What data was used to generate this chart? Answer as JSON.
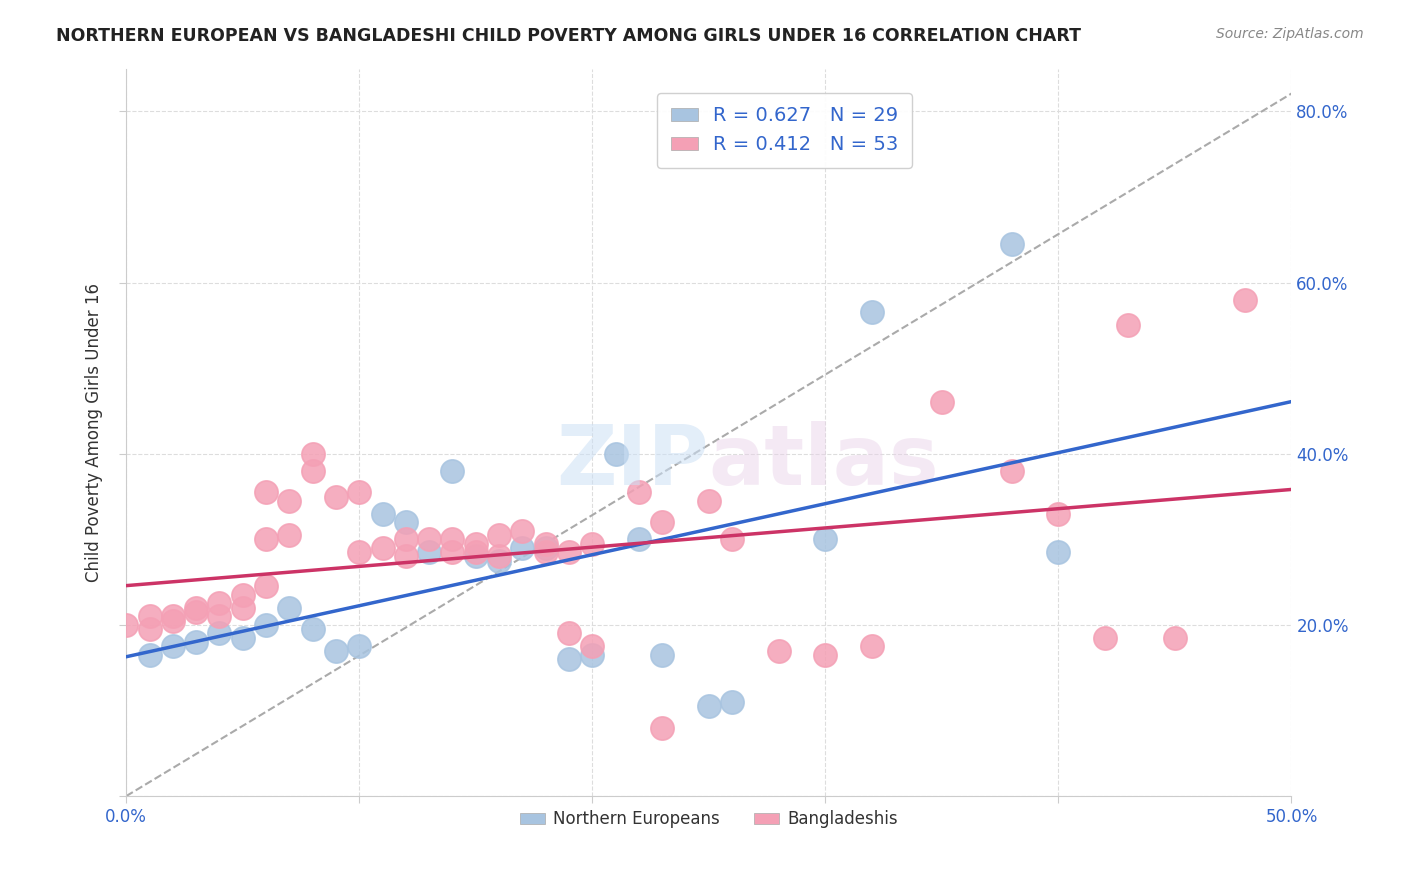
{
  "title": "NORTHERN EUROPEAN VS BANGLADESHI CHILD POVERTY AMONG GIRLS UNDER 16 CORRELATION CHART",
  "source": "Source: ZipAtlas.com",
  "ylabel": "Child Poverty Among Girls Under 16",
  "xlim": [
    0.0,
    0.5
  ],
  "ylim": [
    0.0,
    0.85
  ],
  "xticks": [
    0.0,
    0.1,
    0.2,
    0.3,
    0.4,
    0.5
  ],
  "yticks": [
    0.0,
    0.2,
    0.4,
    0.6,
    0.8
  ],
  "blue_R": 0.627,
  "blue_N": 29,
  "pink_R": 0.412,
  "pink_N": 53,
  "blue_color": "#a8c4e0",
  "pink_color": "#f4a0b5",
  "blue_line_color": "#3366cc",
  "pink_line_color": "#cc3366",
  "dashed_line_color": "#aaaaaa",
  "blue_points_x": [
    0.01,
    0.02,
    0.03,
    0.04,
    0.05,
    0.06,
    0.08,
    0.09,
    0.1,
    0.11,
    0.12,
    0.13,
    0.14,
    0.15,
    0.16,
    0.17,
    0.18,
    0.19,
    0.2,
    0.21,
    0.22,
    0.23,
    0.25,
    0.26,
    0.3,
    0.32,
    0.38,
    0.4,
    0.07
  ],
  "blue_points_y": [
    0.165,
    0.175,
    0.18,
    0.19,
    0.185,
    0.2,
    0.195,
    0.17,
    0.175,
    0.33,
    0.32,
    0.285,
    0.38,
    0.28,
    0.275,
    0.29,
    0.29,
    0.16,
    0.165,
    0.4,
    0.3,
    0.165,
    0.105,
    0.11,
    0.3,
    0.565,
    0.645,
    0.285,
    0.22
  ],
  "pink_points_x": [
    0.0,
    0.01,
    0.01,
    0.02,
    0.02,
    0.03,
    0.03,
    0.04,
    0.04,
    0.05,
    0.05,
    0.06,
    0.06,
    0.06,
    0.07,
    0.07,
    0.08,
    0.08,
    0.09,
    0.1,
    0.1,
    0.11,
    0.12,
    0.12,
    0.13,
    0.14,
    0.14,
    0.15,
    0.15,
    0.16,
    0.16,
    0.17,
    0.18,
    0.18,
    0.19,
    0.2,
    0.22,
    0.23,
    0.25,
    0.26,
    0.28,
    0.3,
    0.32,
    0.35,
    0.38,
    0.4,
    0.42,
    0.43,
    0.45,
    0.48,
    0.19,
    0.2,
    0.23
  ],
  "pink_points_y": [
    0.2,
    0.195,
    0.21,
    0.205,
    0.21,
    0.215,
    0.22,
    0.21,
    0.225,
    0.22,
    0.235,
    0.245,
    0.3,
    0.355,
    0.305,
    0.345,
    0.38,
    0.4,
    0.35,
    0.355,
    0.285,
    0.29,
    0.28,
    0.3,
    0.3,
    0.285,
    0.3,
    0.285,
    0.295,
    0.305,
    0.28,
    0.31,
    0.285,
    0.295,
    0.285,
    0.295,
    0.355,
    0.32,
    0.345,
    0.3,
    0.17,
    0.165,
    0.175,
    0.46,
    0.38,
    0.33,
    0.185,
    0.55,
    0.185,
    0.58,
    0.19,
    0.175,
    0.08
  ],
  "background_color": "#ffffff",
  "grid_color": "#dddddd"
}
